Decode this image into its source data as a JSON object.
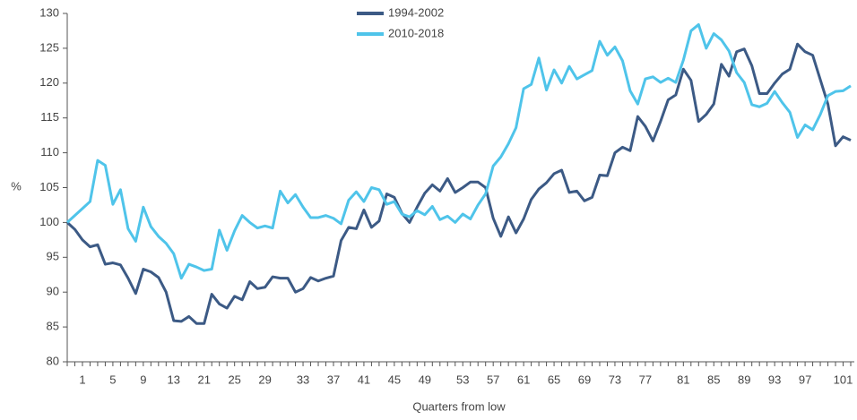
{
  "chart_data": {
    "type": "line",
    "x_label": "Quarters from low",
    "y_label": "%",
    "categories": [
      null,
      null,
      "1",
      null,
      null,
      null,
      "5",
      null,
      null,
      null,
      "9",
      null,
      null,
      null,
      "13",
      null,
      null,
      null,
      "21",
      null,
      null,
      null,
      "25",
      null,
      null,
      null,
      "29",
      null,
      null,
      null,
      null,
      "33",
      null,
      null,
      null,
      "37",
      null,
      null,
      null,
      "41",
      null,
      null,
      null,
      "45",
      null,
      null,
      null,
      "49",
      null,
      null,
      null,
      null,
      "53",
      null,
      null,
      null,
      "57",
      null,
      null,
      null,
      "61",
      null,
      null,
      null,
      "65",
      null,
      null,
      null,
      "69",
      null,
      null,
      null,
      "73",
      null,
      null,
      null,
      "77",
      null,
      null,
      null,
      null,
      "81",
      null,
      null,
      null,
      "85",
      null,
      null,
      null,
      "89",
      null,
      null,
      null,
      "93",
      null,
      null,
      null,
      "97",
      null,
      null,
      null,
      null,
      "101",
      null
    ],
    "series": [
      {
        "name": "1994-2002",
        "color": "#3c5a85",
        "values": [
          100,
          99,
          97.5,
          96.5,
          96.8,
          94,
          94.2,
          93.9,
          92,
          89.8,
          93.3,
          92.9,
          92.1,
          90,
          85.9,
          85.8,
          86.5,
          85.5,
          85.5,
          89.7,
          88.3,
          87.7,
          89.4,
          88.9,
          91.5,
          90.5,
          90.7,
          92.2,
          92,
          92,
          90,
          90.5,
          92.1,
          91.6,
          92,
          92.3,
          97.4,
          99.3,
          99.1,
          101.8,
          99.3,
          100.2,
          104.1,
          103.6,
          101.3,
          100,
          102.2,
          104.2,
          105.4,
          104.5,
          106.3,
          104.3,
          105,
          105.8,
          105.8,
          105,
          100.6,
          98,
          100.8,
          98.5,
          100.5,
          103.3,
          104.8,
          105.7,
          107,
          107.5,
          104.3,
          104.5,
          103.1,
          103.6,
          106.8,
          106.7,
          110,
          110.8,
          110.3,
          115.2,
          113.8,
          111.7,
          114.5,
          117.6,
          118.3,
          122,
          120.4,
          114.5,
          115.5,
          117,
          122.7,
          121,
          124.5,
          124.9,
          122.5,
          118.5,
          118.5,
          120,
          121.3,
          122,
          125.6,
          124.5,
          124,
          120.5,
          117,
          111,
          112.3,
          111.8
        ]
      },
      {
        "name": "2010-2018",
        "color": "#4fc4ea",
        "values": [
          100,
          101,
          102,
          103,
          108.9,
          108.2,
          102.6,
          104.7,
          99.1,
          97.3,
          102.2,
          99.4,
          98,
          97,
          95.5,
          92,
          94,
          93.6,
          93.1,
          93.3,
          98.9,
          96,
          98.8,
          101,
          100,
          99.2,
          99.5,
          99.2,
          104.5,
          102.8,
          104,
          102.2,
          100.7,
          100.7,
          101,
          100.6,
          99.8,
          103.2,
          104.4,
          103,
          105,
          104.7,
          102.6,
          103,
          101.2,
          100.8,
          101.7,
          101.1,
          102.3,
          100.4,
          100.9,
          100,
          101.2,
          100.5,
          102.5,
          104.1,
          108.1,
          109.4,
          111.3,
          113.6,
          119.2,
          119.8,
          123.6,
          119,
          121.9,
          120,
          122.4,
          120.6,
          121.2,
          121.8,
          126,
          124,
          125.2,
          123.2,
          118.9,
          117,
          120.6,
          120.9,
          120.1,
          120.7,
          120.1,
          123.3,
          127.5,
          128.4,
          125,
          127.1,
          126.2,
          124.6,
          121.5,
          120.1,
          116.9,
          116.6,
          117.1,
          118.8,
          117.2,
          115.8,
          112.2,
          114,
          113.3,
          115.5,
          118.2,
          118.8,
          118.9,
          119.6
        ]
      }
    ],
    "ylim": [
      80,
      130
    ],
    "yticks": [
      80,
      85,
      90,
      95,
      100,
      105,
      110,
      115,
      120,
      125,
      130
    ],
    "grid": false,
    "legend": "top"
  }
}
